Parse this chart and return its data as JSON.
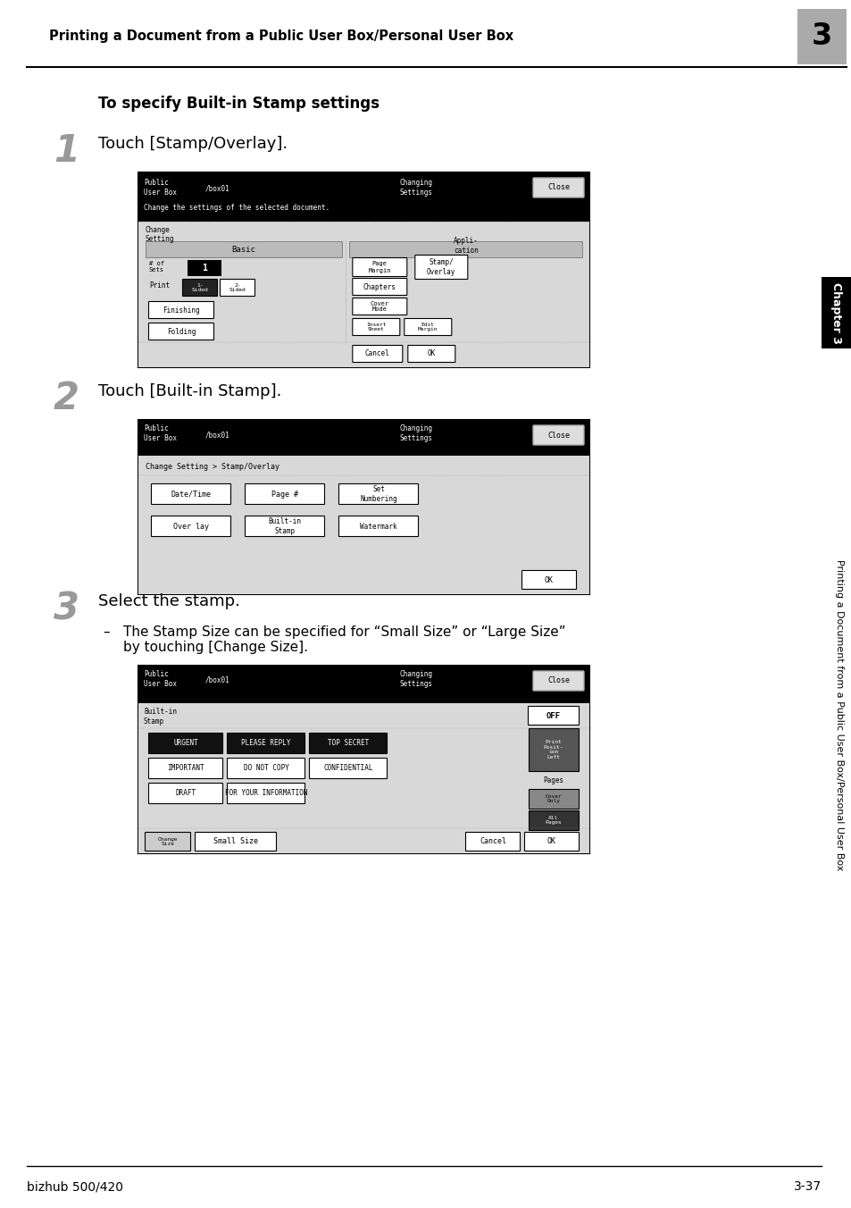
{
  "page_title": "Printing a Document from a Public User Box/Personal User Box",
  "chapter_num": "3",
  "section_title": "To specify Built-in Stamp settings",
  "footer_left": "bizhub 500/420",
  "footer_right": "3-37",
  "bg_color": "#ffffff",
  "sidebar_text": "Printing a Document from a Public User Box/Personal User Box",
  "sidebar_label": "Chapter 3",
  "step1_text": "Touch [Stamp/Overlay].",
  "step2_text": "Touch [Built-in Stamp].",
  "step3_text": "Select the stamp.",
  "step3_sub": "The Stamp Size can be specified for “Small Size” or “Large Size”\nby touching [Change Size]."
}
